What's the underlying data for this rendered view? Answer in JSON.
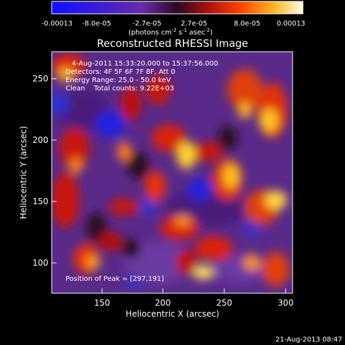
{
  "colorbar": {
    "tick_labels": [
      "-0.00013",
      "-8.0e-05",
      "-2.7e-05",
      "2.7e-05",
      "8.0e-05",
      "0.00013"
    ],
    "units_label": "(photons cm",
    "units_sup1": "-2",
    "units_mid": " s",
    "units_sup2": "-1",
    "units_end": " asec",
    "units_sup3": "-2",
    "units_close": ")"
  },
  "plot": {
    "title": "Reconstructed RHESSI Image",
    "xlabel": "Heliocentric X (arcsec)",
    "ylabel": "Heliocentric Y (arcsec)",
    "x_ticks": [
      "150",
      "200",
      "250",
      "300"
    ],
    "y_ticks": [
      "100",
      "150",
      "200",
      "250"
    ],
    "xlim": [
      110,
      302
    ],
    "ylim": [
      75,
      272
    ]
  },
  "annotations": {
    "line1": "4-Aug-2011 15:33:20.000 to 15:37:56.000",
    "line2": "Detectors: 4F 5F 6F 7F 8F, Att 0",
    "line3": "Energy Range: 25.0 - 50.0 keV",
    "line4": "Clean    Total counts: 9.22E+03",
    "peak": "Position of Peak = [297,191]"
  },
  "footer_date": "21-Aug-2013 08:47"
}
